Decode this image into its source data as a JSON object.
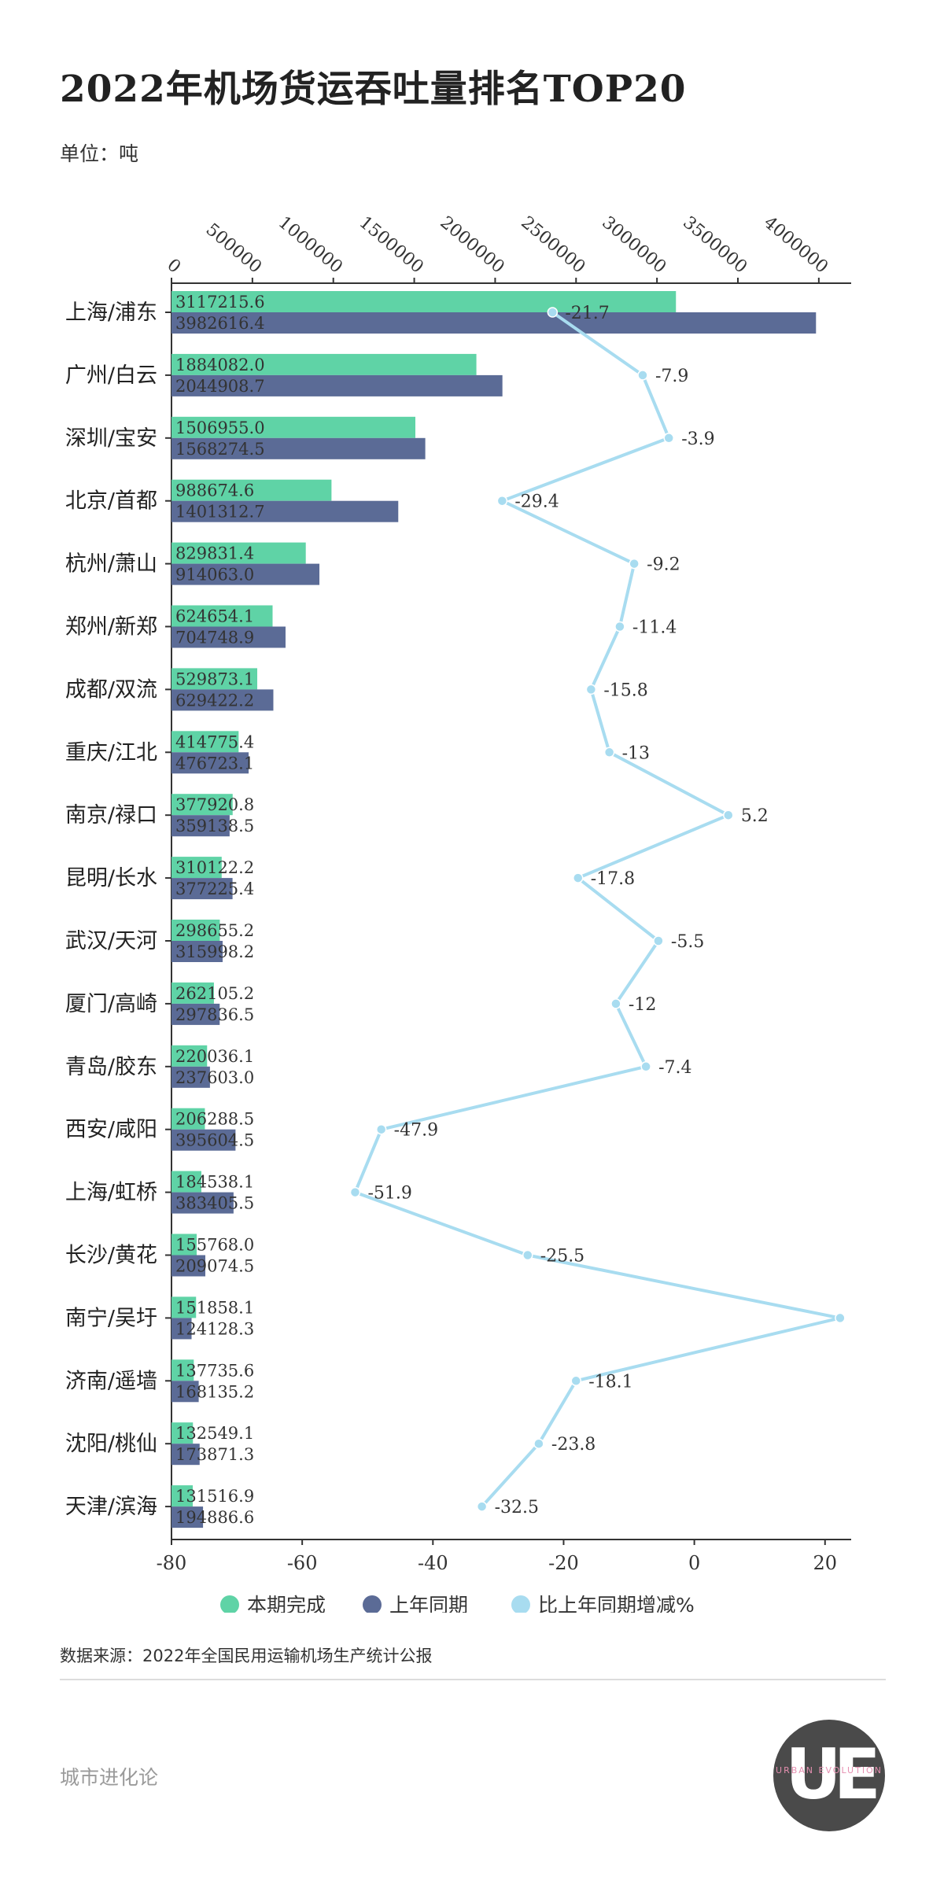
{
  "title": "2022年机场货运吞吐量排名TOP20",
  "unit": "单位：吨",
  "source": "数据来源：2022年全国民用运输机场生产统计公报",
  "brand": "城市进化论",
  "logo": {
    "mark": "UE",
    "sub": "URBAN EVOLUTION"
  },
  "colors": {
    "current": "#5fd3a6",
    "previous": "#5b6b96",
    "change": "#a8dcf0"
  },
  "chart_data": {
    "type": "bar",
    "orientation": "horizontal",
    "categories": [
      "上海/浦东",
      "广州/白云",
      "深圳/宝安",
      "北京/首都",
      "杭州/萧山",
      "郑州/新郑",
      "成都/双流",
      "重庆/江北",
      "南京/禄口",
      "昆明/长水",
      "武汉/天河",
      "厦门/高崎",
      "青岛/胶东",
      "西安/咸阳",
      "上海/虹桥",
      "长沙/黄花",
      "南宁/吴圩",
      "济南/遥墙",
      "沈阳/桃仙",
      "天津/滨海"
    ],
    "series": [
      {
        "name": "本期完成",
        "type": "bar",
        "axis": "top",
        "values": [
          3117215.6,
          1884082.0,
          1506955.0,
          988674.6,
          829831.4,
          624654.1,
          529873.1,
          414775.4,
          377920.8,
          310122.2,
          298655.2,
          262105.2,
          220036.1,
          206288.5,
          184538.1,
          155768.0,
          151858.1,
          137735.6,
          132549.1,
          131516.9
        ],
        "labels": [
          "3117215.6",
          "1884082.0",
          "1506955.0",
          "988674.6",
          "829831.4",
          "624654.1",
          "529873.1",
          "414775.4",
          "377920.8",
          "310122.2",
          "298655.2",
          "262105.2",
          "220036.1",
          "206288.5",
          "184538.1",
          "155768.0",
          "151858.1",
          "137735.6",
          "132549.1",
          "131516.9"
        ]
      },
      {
        "name": "上年同期",
        "type": "bar",
        "axis": "top",
        "values": [
          3982616.4,
          2044908.7,
          1568274.5,
          1401312.7,
          914063.0,
          704748.9,
          629422.2,
          476723.1,
          359138.5,
          377225.4,
          315998.2,
          297836.5,
          237603.0,
          395604.5,
          383405.5,
          209074.5,
          124128.3,
          168135.2,
          173871.3,
          194886.6
        ],
        "labels": [
          "3982616.4",
          "2044908.7",
          "1568274.5",
          "1401312.7",
          "914063.0",
          "704748.9",
          "629422.2",
          "476723.1",
          "359138.5",
          "377225.4",
          "315998.2",
          "297836.5",
          "237603.0",
          "395604.5",
          "383405.5",
          "209074.5",
          "124128.3",
          "168135.2",
          "173871.3",
          "194886.6"
        ]
      },
      {
        "name": "比上年同期增减%",
        "type": "line",
        "axis": "bottom",
        "values": [
          -21.7,
          -7.9,
          -3.9,
          -29.4,
          -9.2,
          -11.4,
          -15.8,
          -13,
          5.2,
          -17.8,
          -5.5,
          -12,
          -7.4,
          -47.9,
          -51.9,
          -25.5,
          22.3,
          -18.1,
          -23.8,
          -32.5
        ],
        "labels": [
          "-21.7",
          "-7.9",
          "-3.9",
          "-29.4",
          "-9.2",
          "-11.4",
          "-15.8",
          "-13",
          "5.2",
          "-17.8",
          "-5.5",
          "-12",
          "-7.4",
          "-47.9",
          "-51.9",
          "-25.5",
          "",
          "-18.1",
          "-23.8",
          "-32.5"
        ]
      }
    ],
    "top_axis": {
      "ticks": [
        0,
        500000,
        1000000,
        1500000,
        2000000,
        2500000,
        3000000,
        3500000,
        4000000
      ],
      "range": [
        0,
        4200000
      ]
    },
    "bottom_axis": {
      "ticks": [
        -80,
        -60,
        -40,
        -20,
        0,
        20
      ],
      "range": [
        -80,
        24
      ]
    },
    "legend": {
      "position": "bottom",
      "items": [
        "本期完成",
        "上年同期",
        "比上年同期增减%"
      ]
    }
  }
}
